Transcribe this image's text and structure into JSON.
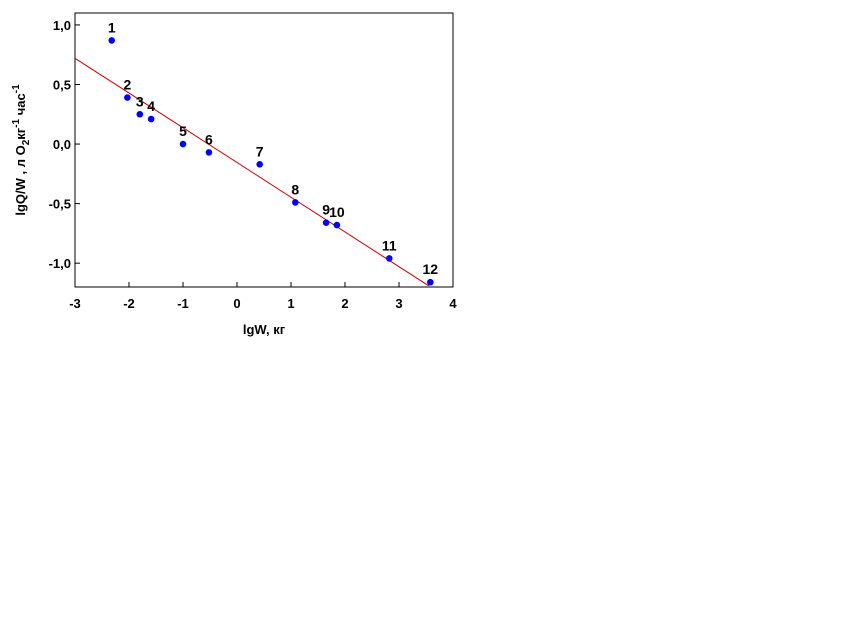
{
  "chart_data": {
    "type": "scatter",
    "title": "",
    "xlabel": "lgW, кг",
    "ylabel_parts": {
      "pre": "lgQ/W , л O",
      "sub": "2",
      "mid": "кг",
      "sup1": "-1",
      "post": " час",
      "sup2": "-1"
    },
    "xlim": [
      -3,
      4
    ],
    "ylim": [
      -1.2,
      1.1
    ],
    "x_ticks": [
      -3,
      -2,
      -1,
      0,
      1,
      2,
      3,
      4
    ],
    "x_tick_labels": [
      "-3",
      "-2",
      "-1",
      "0",
      "1",
      "2",
      "3",
      "4"
    ],
    "y_ticks": [
      1.0,
      0.5,
      0.0,
      -0.5,
      -1.0
    ],
    "y_tick_labels": [
      "1,0",
      "0,5",
      "0,0",
      "-0,5",
      "-1,0"
    ],
    "grid": false,
    "point_color": "#0000ff",
    "line_color": "#cc0000",
    "points": [
      {
        "label": "1",
        "x": -2.32,
        "y": 0.87
      },
      {
        "label": "2",
        "x": -2.03,
        "y": 0.39
      },
      {
        "label": "3",
        "x": -1.8,
        "y": 0.25
      },
      {
        "label": "4",
        "x": -1.59,
        "y": 0.21
      },
      {
        "label": "5",
        "x": -1.0,
        "y": 0.0
      },
      {
        "label": "6",
        "x": -0.52,
        "y": -0.07
      },
      {
        "label": "7",
        "x": 0.42,
        "y": -0.17
      },
      {
        "label": "8",
        "x": 1.08,
        "y": -0.49
      },
      {
        "label": "9",
        "x": 1.65,
        "y": -0.66
      },
      {
        "label": "10",
        "x": 1.85,
        "y": -0.68
      },
      {
        "label": "11",
        "x": 2.82,
        "y": -0.96
      },
      {
        "label": "12",
        "x": 3.58,
        "y": -1.16
      }
    ],
    "fit_line": {
      "x": [
        -3,
        3.55
      ],
      "y": [
        0.72,
        -1.19
      ]
    }
  }
}
